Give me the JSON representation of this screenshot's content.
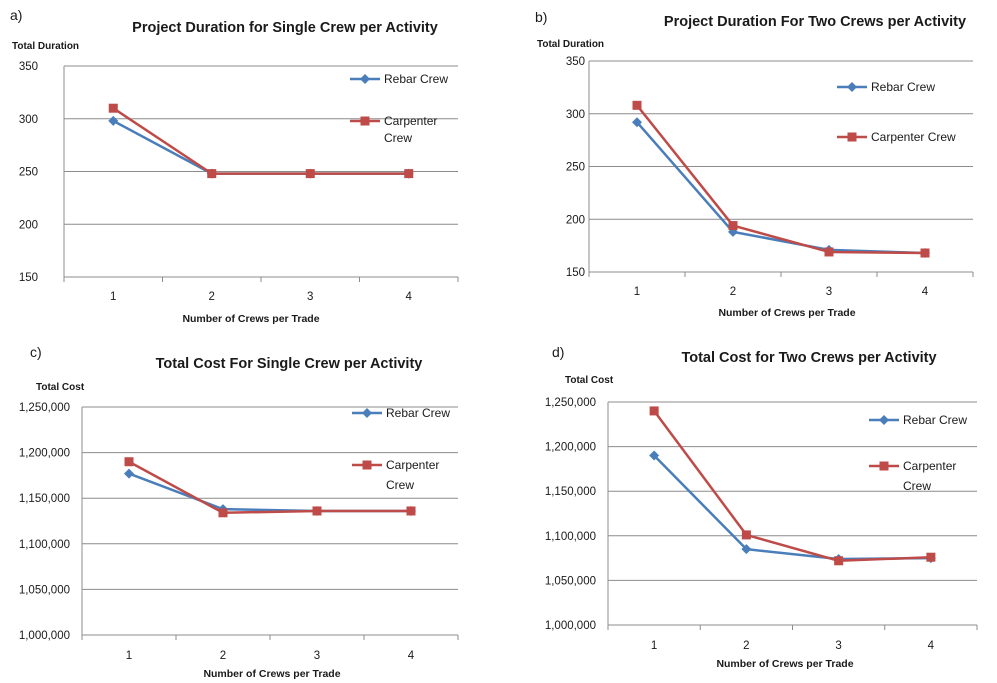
{
  "chart_data": [
    {
      "type": "line",
      "panel_letter": "a)",
      "title": "Project Duration for Single Crew per Activity",
      "ylabel": "Total Duration",
      "xlabel": "Number of Crews per Trade",
      "categories": [
        "1",
        "2",
        "3",
        "4"
      ],
      "ylim": [
        150,
        350
      ],
      "yticks": [
        "150",
        "200",
        "250",
        "300",
        "350"
      ],
      "grid": true,
      "legend_position": "right",
      "series": [
        {
          "name": "Rebar Crew",
          "name_lines": [
            "Rebar Crew"
          ],
          "color": "#4a7ebb",
          "marker": "diamond",
          "values": [
            298,
            248,
            248,
            248
          ]
        },
        {
          "name": "Carpenter Crew",
          "name_lines": [
            "Carpenter",
            "Crew"
          ],
          "color": "#be4b48",
          "marker": "square",
          "values": [
            310,
            248,
            248,
            248
          ]
        }
      ]
    },
    {
      "type": "line",
      "panel_letter": "b)",
      "title": "Project Duration For Two Crews per Activity",
      "ylabel": "Total Duration",
      "xlabel": "Number of Crews per Trade",
      "categories": [
        "1",
        "2",
        "3",
        "4"
      ],
      "ylim": [
        150,
        350
      ],
      "yticks": [
        "150",
        "200",
        "250",
        "300",
        "350"
      ],
      "grid": true,
      "legend_position": "right",
      "series": [
        {
          "name": "Rebar Crew",
          "name_lines": [
            "Rebar Crew"
          ],
          "color": "#4a7ebb",
          "marker": "diamond",
          "values": [
            292,
            188,
            171,
            168
          ]
        },
        {
          "name": "Carpenter Crew",
          "name_lines": [
            "Carpenter Crew"
          ],
          "color": "#be4b48",
          "marker": "square",
          "values": [
            308,
            194,
            169,
            168
          ]
        }
      ]
    },
    {
      "type": "line",
      "panel_letter": "c)",
      "title": "Total Cost For Single Crew per Activity",
      "ylabel": "Total Cost",
      "xlabel": "Number of Crews per Trade",
      "categories": [
        "1",
        "2",
        "3",
        "4"
      ],
      "ylim": [
        1000000,
        1250000
      ],
      "yticks": [
        "1,000,000",
        "1,050,000",
        "1,100,000",
        "1,150,000",
        "1,200,000",
        "1,250,000"
      ],
      "grid": true,
      "legend_position": "right",
      "series": [
        {
          "name": "Rebar Crew",
          "name_lines": [
            "Rebar Crew"
          ],
          "color": "#4a7ebb",
          "marker": "diamond",
          "values": [
            1177000,
            1138000,
            1136000,
            1136000
          ]
        },
        {
          "name": "Carpenter Crew",
          "name_lines": [
            "Carpenter",
            "Crew"
          ],
          "color": "#be4b48",
          "marker": "square",
          "values": [
            1190000,
            1134000,
            1136000,
            1136000
          ]
        }
      ]
    },
    {
      "type": "line",
      "panel_letter": "d)",
      "title": "Total Cost for Two Crews per Activity",
      "ylabel": "Total Cost",
      "xlabel": "Number of Crews per Trade",
      "categories": [
        "1",
        "2",
        "3",
        "4"
      ],
      "ylim": [
        1000000,
        1250000
      ],
      "yticks": [
        "1,000,000",
        "1,050,000",
        "1,100,000",
        "1,150,000",
        "1,200,000",
        "1,250,000"
      ],
      "grid": true,
      "legend_position": "right",
      "series": [
        {
          "name": "Rebar Crew",
          "name_lines": [
            "Rebar Crew"
          ],
          "color": "#4a7ebb",
          "marker": "diamond",
          "values": [
            1190000,
            1085000,
            1074000,
            1075000
          ]
        },
        {
          "name": "Carpenter Crew",
          "name_lines": [
            "Carpenter",
            "Crew"
          ],
          "color": "#be4b48",
          "marker": "square",
          "values": [
            1240000,
            1101000,
            1072000,
            1076000
          ]
        }
      ]
    }
  ]
}
